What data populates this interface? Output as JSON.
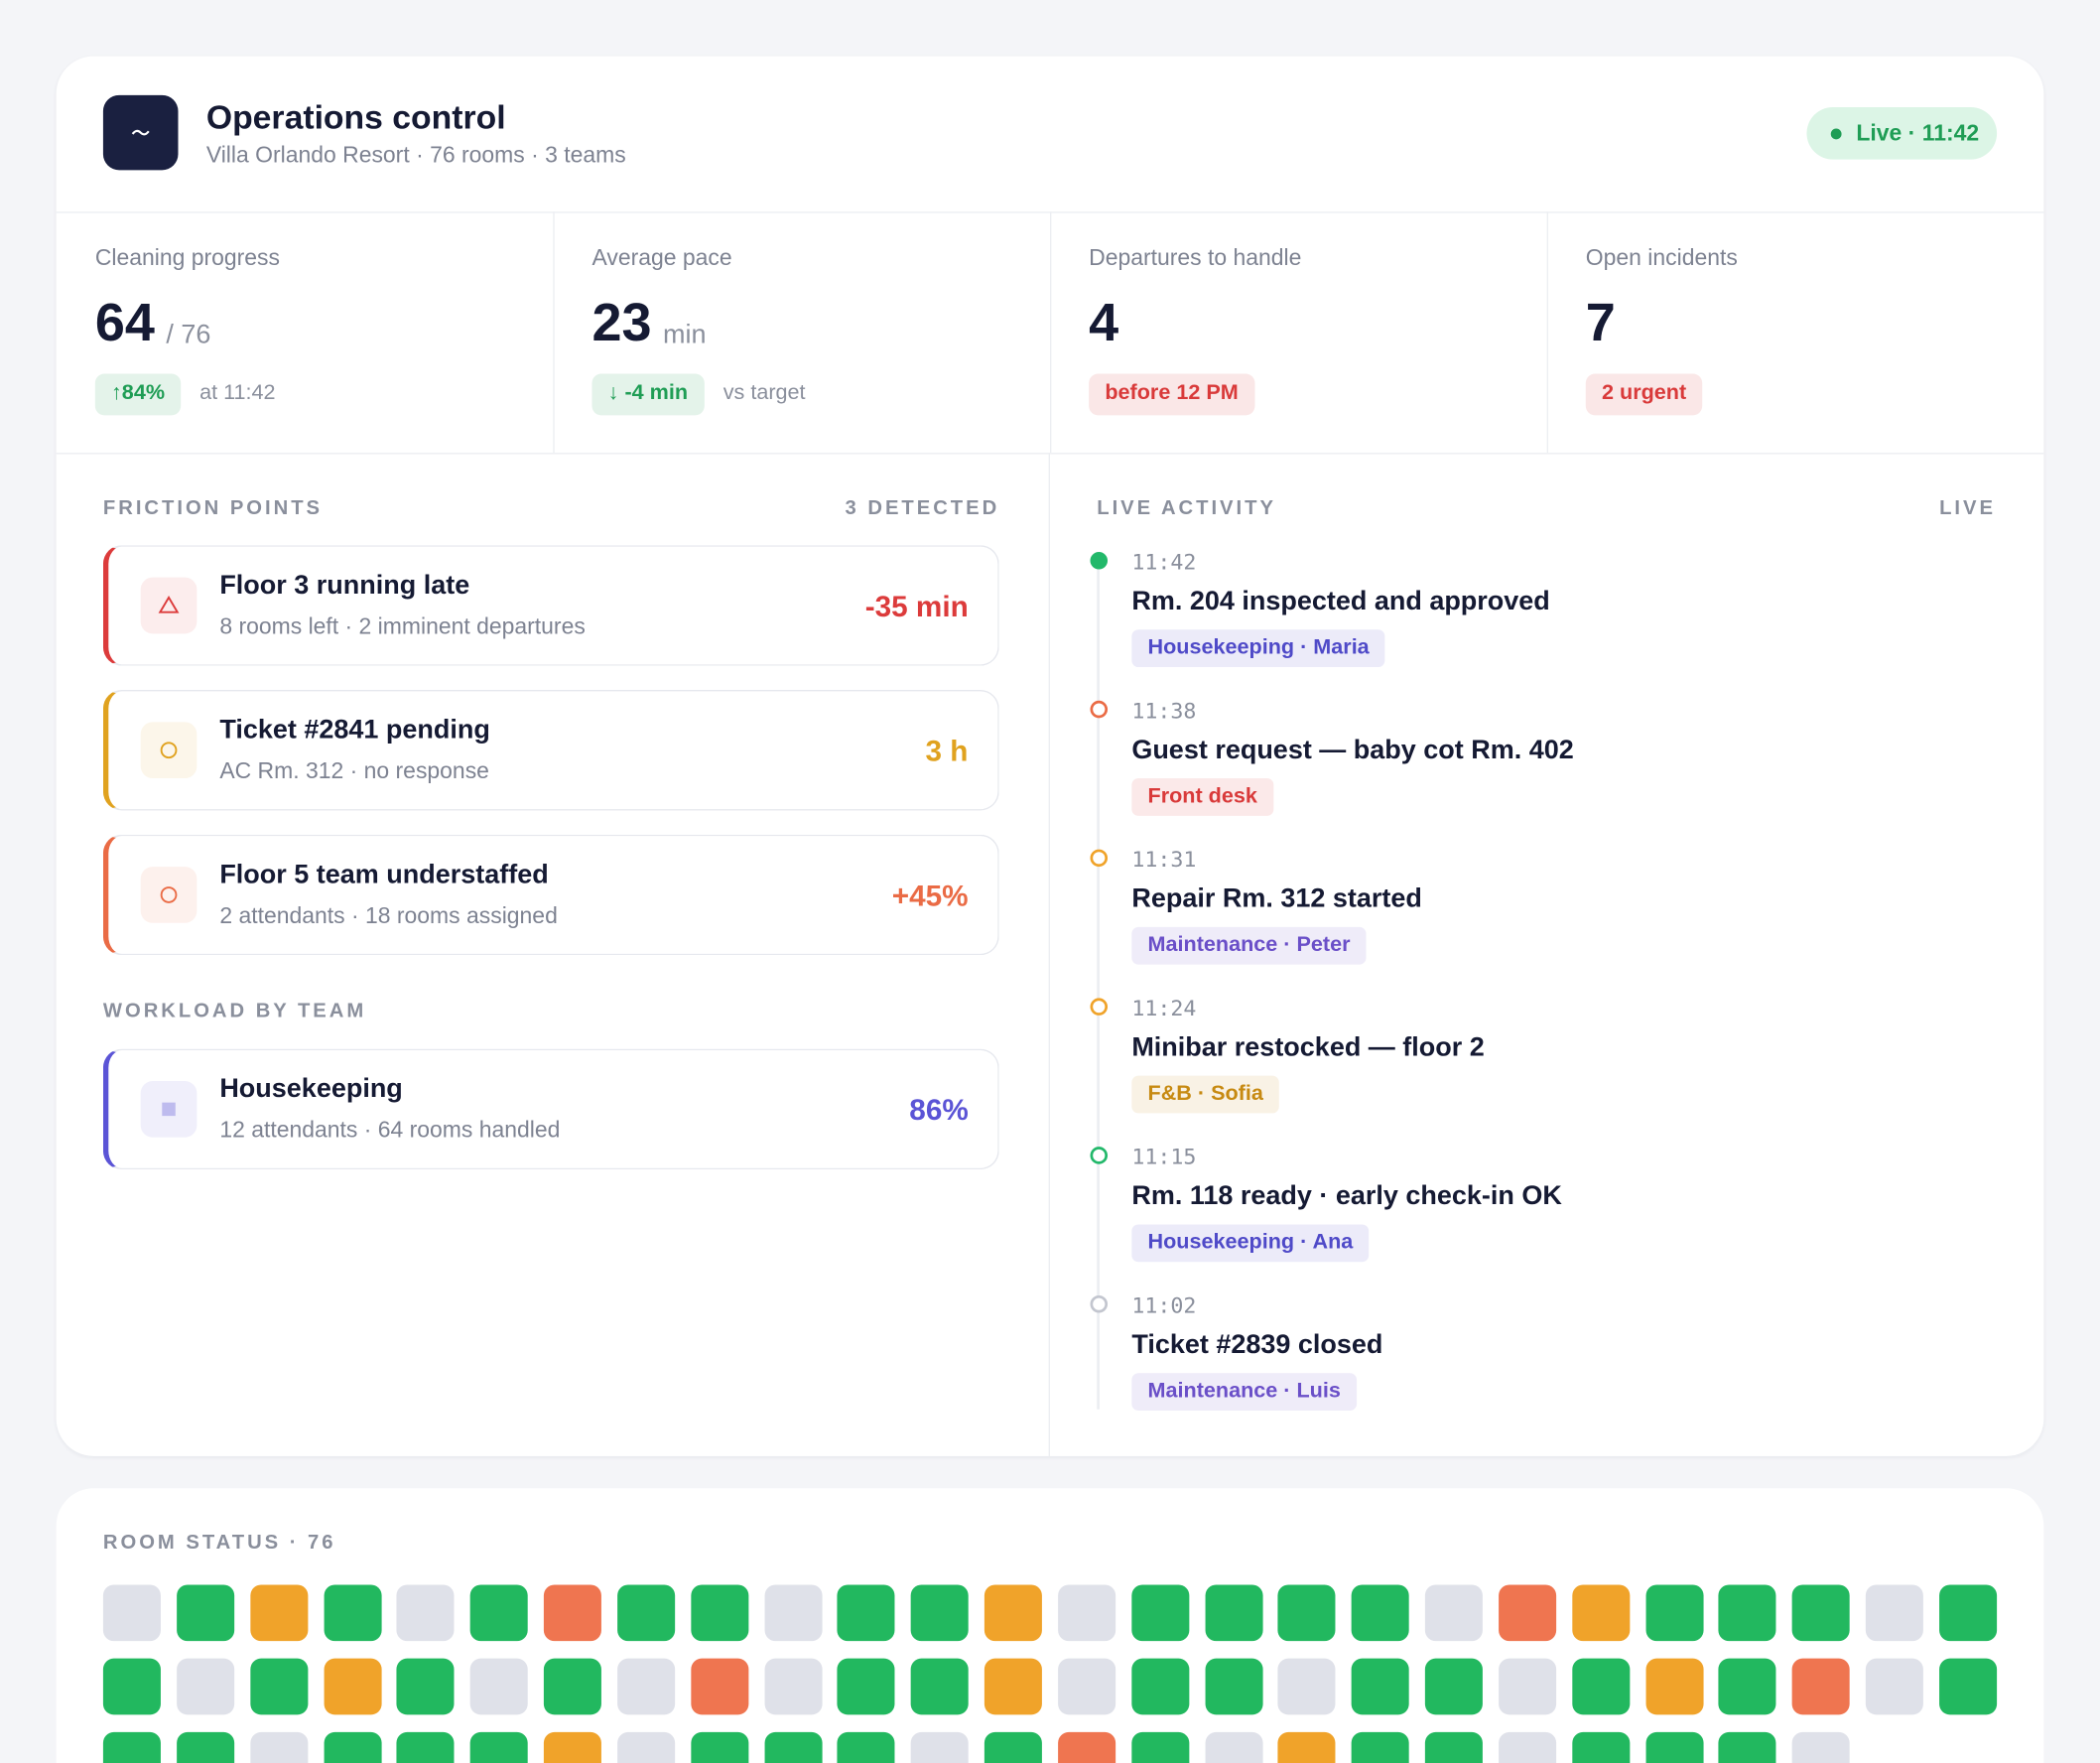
{
  "header": {
    "title": "Operations control",
    "subtitle": "Villa Orlando Resort · 76 rooms · 3 teams",
    "status": "Live · 11:42"
  },
  "kpis": [
    {
      "label": "Cleaning progress",
      "value": 64,
      "unit": "/ 76",
      "badge": "↑84%",
      "badge_color": "#1f9d55",
      "note": "at 11:42"
    },
    {
      "label": "Average pace",
      "value": 23,
      "unit": "min",
      "badge": "↓ -4 min",
      "badge_color": "#1f9d55",
      "note": "vs target"
    },
    {
      "label": "Departures to handle",
      "value": 4,
      "badge": "before 12 PM",
      "badge_color": "#d93a3a"
    },
    {
      "label": "Open incidents",
      "value": 7,
      "badge": "2 urgent",
      "badge_color": "#d93a3a"
    }
  ],
  "friction": {
    "heading": "FRICTION POINTS",
    "count": "3 DETECTED",
    "items": [
      {
        "title": "Floor 3 running late",
        "detail": "8 rooms left · 2 imminent departures",
        "value": "-35 min",
        "color": "#dc3b3b"
      },
      {
        "title": "Ticket #2841 pending",
        "detail": "AC Rm. 312 · no response",
        "value": "3 h",
        "color": "#e0a21f"
      },
      {
        "title": "Floor 5 team understaffed",
        "detail": "2 attendants · 18 rooms assigned",
        "value": "+45%",
        "color": "#ea6b45"
      }
    ]
  },
  "workload": {
    "heading": "WORKLOAD BY TEAM",
    "teams": [
      {
        "name": "Housekeeping",
        "detail": "12 attendants · 64 rooms handled",
        "value": "86%",
        "color": "#5b54d6"
      }
    ]
  },
  "activity": {
    "heading": "LIVE ACTIVITY",
    "badge": "LIVE",
    "items": [
      {
        "time": "11:42",
        "text": "Rm. 204 inspected and approved",
        "tag": "Housekeeping · Maria",
        "color": "#22b86a",
        "tag_color": "#4f4ac8"
      },
      {
        "time": "11:38",
        "text": "Guest request — baby cot Rm. 402",
        "tag": "Front desk",
        "color": "#ea6b45",
        "tag_color": "#d93a3a"
      },
      {
        "time": "11:31",
        "text": "Repair Rm. 312 started",
        "tag": "Maintenance · Peter",
        "color": "#f0a32a",
        "tag_color": "#6a4fc8"
      },
      {
        "time": "11:24",
        "text": "Minibar restocked — floor 2",
        "tag": "F&B · Sofia",
        "color": "#f0a32a",
        "tag_color": "#c78a12"
      },
      {
        "time": "11:15",
        "text": "Rm. 118 ready · early check-in OK",
        "tag": "Housekeeping · Ana",
        "color": "#22b86a",
        "tag_color": "#4f4ac8"
      },
      {
        "time": "11:02",
        "text": "Ticket #2839 closed",
        "tag": "Maintenance · Luis",
        "color": "#c3c6cf",
        "tag_color": "#6a4fc8"
      }
    ]
  },
  "rooms": {
    "heading": "ROOM STATUS · 76"
  }
}
